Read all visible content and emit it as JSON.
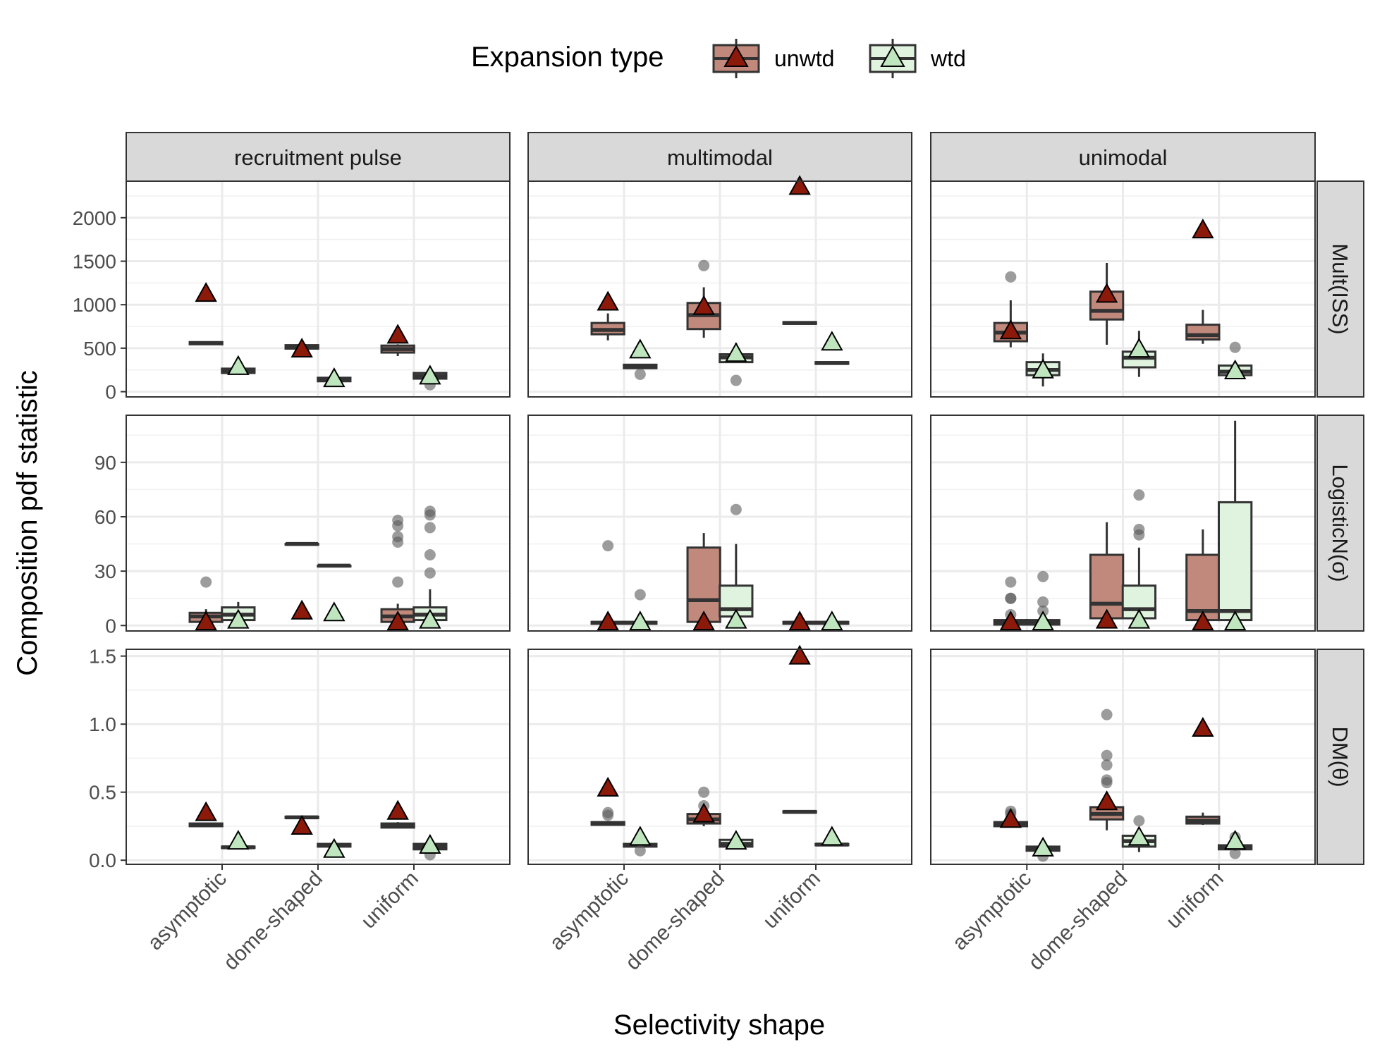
{
  "chart_data": {
    "type": "box",
    "xlabel": "Selectivity shape",
    "ylabel": "Composition pdf statistic",
    "legend": {
      "title": "Expansion type",
      "position": "top",
      "entries": [
        {
          "name": "unwtd",
          "fill": "#c0897b",
          "marker": "#8b1a0a"
        },
        {
          "name": "wtd",
          "fill": "#dff3df",
          "marker": "#bfe6bf"
        }
      ]
    },
    "columns": [
      "recruitment pulse",
      "multimodal",
      "unimodal"
    ],
    "rows": [
      {
        "label": "Mult(ISS)",
        "ylim": [
          -60,
          2420
        ],
        "ticks": [
          0,
          500,
          1000,
          1500,
          2000
        ],
        "tick_labels": [
          "0",
          "500",
          "1000",
          "1500",
          "2000"
        ]
      },
      {
        "label": "LogisticN(σ)",
        "ylim": [
          -3,
          116
        ],
        "ticks": [
          0,
          30,
          60,
          90
        ],
        "tick_labels": [
          "0",
          "30",
          "60",
          "90"
        ]
      },
      {
        "label": "DM(θ)",
        "ylim": [
          -0.03,
          1.55
        ],
        "ticks": [
          0,
          0.5,
          1.0,
          1.5
        ],
        "tick_labels": [
          "0.0",
          "0.5",
          "1.0",
          "1.5"
        ]
      }
    ],
    "categories": [
      "asymptotic",
      "dome-shaped",
      "uniform"
    ],
    "series": [
      "unwtd",
      "wtd"
    ],
    "panels": [
      {
        "row": 0,
        "col": 0,
        "boxes": [
          {
            "cat": 0,
            "s": 0,
            "q1": 545,
            "med": 558,
            "q3": 570,
            "lo": 545,
            "hi": 570,
            "out": [],
            "tri": 1130
          },
          {
            "cat": 0,
            "s": 1,
            "q1": 215,
            "med": 235,
            "q3": 265,
            "lo": 205,
            "hi": 275,
            "out": [],
            "tri": 290
          },
          {
            "cat": 1,
            "s": 0,
            "q1": 495,
            "med": 515,
            "q3": 535,
            "lo": 495,
            "hi": 540,
            "out": [],
            "tri": 490
          },
          {
            "cat": 1,
            "s": 1,
            "q1": 120,
            "med": 140,
            "q3": 160,
            "lo": 115,
            "hi": 165,
            "out": [],
            "tri": 150
          },
          {
            "cat": 2,
            "s": 0,
            "q1": 450,
            "med": 490,
            "q3": 530,
            "lo": 410,
            "hi": 545,
            "out": [],
            "tri": 650
          },
          {
            "cat": 2,
            "s": 1,
            "q1": 150,
            "med": 180,
            "q3": 215,
            "lo": 120,
            "hi": 225,
            "out": [
              80
            ],
            "tri": 180
          }
        ]
      },
      {
        "row": 0,
        "col": 1,
        "boxes": [
          {
            "cat": 0,
            "s": 0,
            "q1": 660,
            "med": 710,
            "q3": 790,
            "lo": 590,
            "hi": 900,
            "out": [],
            "tri": 1030
          },
          {
            "cat": 0,
            "s": 1,
            "q1": 270,
            "med": 290,
            "q3": 310,
            "lo": 260,
            "hi": 320,
            "out": [
              200
            ],
            "tri": 480
          },
          {
            "cat": 1,
            "s": 0,
            "q1": 720,
            "med": 880,
            "q3": 1020,
            "lo": 620,
            "hi": 1200,
            "out": [
              1450
            ],
            "tri": 980
          },
          {
            "cat": 1,
            "s": 1,
            "q1": 340,
            "med": 395,
            "q3": 430,
            "lo": 330,
            "hi": 560,
            "out": [
              130
            ],
            "tri": 440
          },
          {
            "cat": 2,
            "s": 0,
            "q1": 780,
            "med": 790,
            "q3": 800,
            "lo": 780,
            "hi": 800,
            "out": [],
            "tri": 2360
          },
          {
            "cat": 2,
            "s": 1,
            "q1": 320,
            "med": 330,
            "q3": 340,
            "lo": 320,
            "hi": 340,
            "out": [],
            "tri": 570
          }
        ]
      },
      {
        "row": 0,
        "col": 2,
        "boxes": [
          {
            "cat": 0,
            "s": 0,
            "q1": 580,
            "med": 680,
            "q3": 790,
            "lo": 510,
            "hi": 1050,
            "out": [
              1320
            ],
            "tri": 700
          },
          {
            "cat": 0,
            "s": 1,
            "q1": 190,
            "med": 250,
            "q3": 340,
            "lo": 60,
            "hi": 440,
            "out": [],
            "tri": 250
          },
          {
            "cat": 1,
            "s": 0,
            "q1": 830,
            "med": 930,
            "q3": 1150,
            "lo": 540,
            "hi": 1480,
            "out": [],
            "tri": 1120
          },
          {
            "cat": 1,
            "s": 1,
            "q1": 280,
            "med": 390,
            "q3": 460,
            "lo": 170,
            "hi": 700,
            "out": [],
            "tri": 490
          },
          {
            "cat": 2,
            "s": 0,
            "q1": 600,
            "med": 650,
            "q3": 770,
            "lo": 550,
            "hi": 940,
            "out": [],
            "tri": 1860
          },
          {
            "cat": 2,
            "s": 1,
            "q1": 190,
            "med": 230,
            "q3": 300,
            "lo": 185,
            "hi": 310,
            "out": [
              510
            ],
            "tri": 240
          }
        ]
      },
      {
        "row": 1,
        "col": 0,
        "boxes": [
          {
            "cat": 0,
            "s": 0,
            "q1": 2,
            "med": 5,
            "q3": 7,
            "lo": 1,
            "hi": 9,
            "out": [
              24
            ],
            "tri": 2
          },
          {
            "cat": 0,
            "s": 1,
            "q1": 3,
            "med": 6,
            "q3": 10,
            "lo": 2,
            "hi": 13,
            "out": [],
            "tri": 3
          },
          {
            "cat": 1,
            "s": 0,
            "q1": 45,
            "med": 45,
            "q3": 45,
            "lo": 45,
            "hi": 45,
            "out": [],
            "tri": 8
          },
          {
            "cat": 1,
            "s": 1,
            "q1": 33,
            "med": 33,
            "q3": 33,
            "lo": 33,
            "hi": 33,
            "out": [],
            "tri": 7
          },
          {
            "cat": 2,
            "s": 0,
            "q1": 2,
            "med": 5,
            "q3": 9,
            "lo": 0,
            "hi": 12,
            "out": [
              24,
              46,
              49,
              55,
              58
            ],
            "tri": 2
          },
          {
            "cat": 2,
            "s": 1,
            "q1": 3,
            "med": 6,
            "q3": 10,
            "lo": 1,
            "hi": 20,
            "out": [
              29,
              39,
              54,
              61,
              63
            ],
            "tri": 3
          }
        ]
      },
      {
        "row": 1,
        "col": 1,
        "boxes": [
          {
            "cat": 0,
            "s": 0,
            "q1": 1,
            "med": 1.5,
            "q3": 2,
            "lo": 0.5,
            "hi": 3,
            "out": [
              44
            ],
            "tri": 2
          },
          {
            "cat": 0,
            "s": 1,
            "q1": 1,
            "med": 1.5,
            "q3": 2,
            "lo": 0.5,
            "hi": 3,
            "out": [
              17
            ],
            "tri": 2
          },
          {
            "cat": 1,
            "s": 0,
            "q1": 2,
            "med": 14,
            "q3": 43,
            "lo": 0,
            "hi": 51,
            "out": [],
            "tri": 2
          },
          {
            "cat": 1,
            "s": 1,
            "q1": 5,
            "med": 9,
            "q3": 22,
            "lo": 1,
            "hi": 45,
            "out": [
              64
            ],
            "tri": 3
          },
          {
            "cat": 2,
            "s": 0,
            "q1": 1,
            "med": 1.5,
            "q3": 2,
            "lo": 0.5,
            "hi": 2.5,
            "out": [],
            "tri": 2
          },
          {
            "cat": 2,
            "s": 1,
            "q1": 1,
            "med": 1.5,
            "q3": 2,
            "lo": 0.5,
            "hi": 2.5,
            "out": [],
            "tri": 2
          }
        ]
      },
      {
        "row": 1,
        "col": 2,
        "boxes": [
          {
            "cat": 0,
            "s": 0,
            "q1": 0.5,
            "med": 1.5,
            "q3": 3,
            "lo": 0,
            "hi": 4,
            "out": [
              6,
              15,
              15,
              24
            ],
            "tri": 2
          },
          {
            "cat": 0,
            "s": 1,
            "q1": 0.5,
            "med": 1.5,
            "q3": 3,
            "lo": 0,
            "hi": 4,
            "out": [
              8,
              13,
              27
            ],
            "tri": 2
          },
          {
            "cat": 1,
            "s": 0,
            "q1": 4,
            "med": 12,
            "q3": 39,
            "lo": 1,
            "hi": 57,
            "out": [],
            "tri": 3
          },
          {
            "cat": 1,
            "s": 1,
            "q1": 4,
            "med": 9,
            "q3": 22,
            "lo": 1,
            "hi": 43,
            "out": [
              50,
              53,
              72
            ],
            "tri": 3
          },
          {
            "cat": 2,
            "s": 0,
            "q1": 3,
            "med": 8,
            "q3": 39,
            "lo": 1,
            "hi": 53,
            "out": [],
            "tri": 2
          },
          {
            "cat": 2,
            "s": 1,
            "q1": 3,
            "med": 8,
            "q3": 68,
            "lo": 1,
            "hi": 113,
            "out": [],
            "tri": 2
          }
        ]
      },
      {
        "row": 2,
        "col": 0,
        "boxes": [
          {
            "cat": 0,
            "s": 0,
            "q1": 0.25,
            "med": 0.26,
            "q3": 0.27,
            "lo": 0.25,
            "hi": 0.27,
            "out": [],
            "tri": 0.35
          },
          {
            "cat": 0,
            "s": 1,
            "q1": 0.09,
            "med": 0.095,
            "q3": 0.1,
            "lo": 0.09,
            "hi": 0.1,
            "out": [],
            "tri": 0.14
          },
          {
            "cat": 1,
            "s": 0,
            "q1": 0.31,
            "med": 0.315,
            "q3": 0.32,
            "lo": 0.31,
            "hi": 0.32,
            "out": [],
            "tri": 0.25
          },
          {
            "cat": 1,
            "s": 1,
            "q1": 0.1,
            "med": 0.11,
            "q3": 0.12,
            "lo": 0.1,
            "hi": 0.12,
            "out": [],
            "tri": 0.08
          },
          {
            "cat": 2,
            "s": 0,
            "q1": 0.24,
            "med": 0.26,
            "q3": 0.27,
            "lo": 0.24,
            "hi": 0.28,
            "out": [],
            "tri": 0.36
          },
          {
            "cat": 2,
            "s": 1,
            "q1": 0.08,
            "med": 0.1,
            "q3": 0.12,
            "lo": 0.07,
            "hi": 0.13,
            "out": [
              0.04
            ],
            "tri": 0.11
          }
        ]
      },
      {
        "row": 2,
        "col": 1,
        "boxes": [
          {
            "cat": 0,
            "s": 0,
            "q1": 0.26,
            "med": 0.27,
            "q3": 0.28,
            "lo": 0.26,
            "hi": 0.28,
            "out": [
              0.33,
              0.35
            ],
            "tri": 0.53
          },
          {
            "cat": 0,
            "s": 1,
            "q1": 0.1,
            "med": 0.11,
            "q3": 0.12,
            "lo": 0.1,
            "hi": 0.12,
            "out": [
              0.07
            ],
            "tri": 0.17
          },
          {
            "cat": 1,
            "s": 0,
            "q1": 0.27,
            "med": 0.3,
            "q3": 0.34,
            "lo": 0.25,
            "hi": 0.36,
            "out": [
              0.4,
              0.5
            ],
            "tri": 0.34
          },
          {
            "cat": 1,
            "s": 1,
            "q1": 0.1,
            "med": 0.12,
            "q3": 0.15,
            "lo": 0.08,
            "hi": 0.16,
            "out": [],
            "tri": 0.14
          },
          {
            "cat": 2,
            "s": 0,
            "q1": 0.35,
            "med": 0.355,
            "q3": 0.36,
            "lo": 0.35,
            "hi": 0.36,
            "out": [],
            "tri": 1.5
          },
          {
            "cat": 2,
            "s": 1,
            "q1": 0.11,
            "med": 0.115,
            "q3": 0.12,
            "lo": 0.11,
            "hi": 0.12,
            "out": [],
            "tri": 0.17
          }
        ]
      },
      {
        "row": 2,
        "col": 2,
        "boxes": [
          {
            "cat": 0,
            "s": 0,
            "q1": 0.25,
            "med": 0.26,
            "q3": 0.28,
            "lo": 0.24,
            "hi": 0.3,
            "out": [
              0.34,
              0.36
            ],
            "tri": 0.3
          },
          {
            "cat": 0,
            "s": 1,
            "q1": 0.07,
            "med": 0.09,
            "q3": 0.1,
            "lo": 0.05,
            "hi": 0.11,
            "out": [
              0.03
            ],
            "tri": 0.09
          },
          {
            "cat": 1,
            "s": 0,
            "q1": 0.3,
            "med": 0.34,
            "q3": 0.39,
            "lo": 0.22,
            "hi": 0.44,
            "out": [
              0.57,
              0.59,
              0.7,
              0.77,
              1.07
            ],
            "tri": 0.43
          },
          {
            "cat": 1,
            "s": 1,
            "q1": 0.1,
            "med": 0.14,
            "q3": 0.18,
            "lo": 0.06,
            "hi": 0.2,
            "out": [
              0.29
            ],
            "tri": 0.17
          },
          {
            "cat": 2,
            "s": 0,
            "q1": 0.27,
            "med": 0.29,
            "q3": 0.32,
            "lo": 0.26,
            "hi": 0.35,
            "out": [],
            "tri": 0.97
          },
          {
            "cat": 2,
            "s": 1,
            "q1": 0.08,
            "med": 0.09,
            "q3": 0.11,
            "lo": 0.07,
            "hi": 0.12,
            "out": [
              0.05,
              0.17
            ],
            "tri": 0.14
          }
        ]
      }
    ]
  }
}
